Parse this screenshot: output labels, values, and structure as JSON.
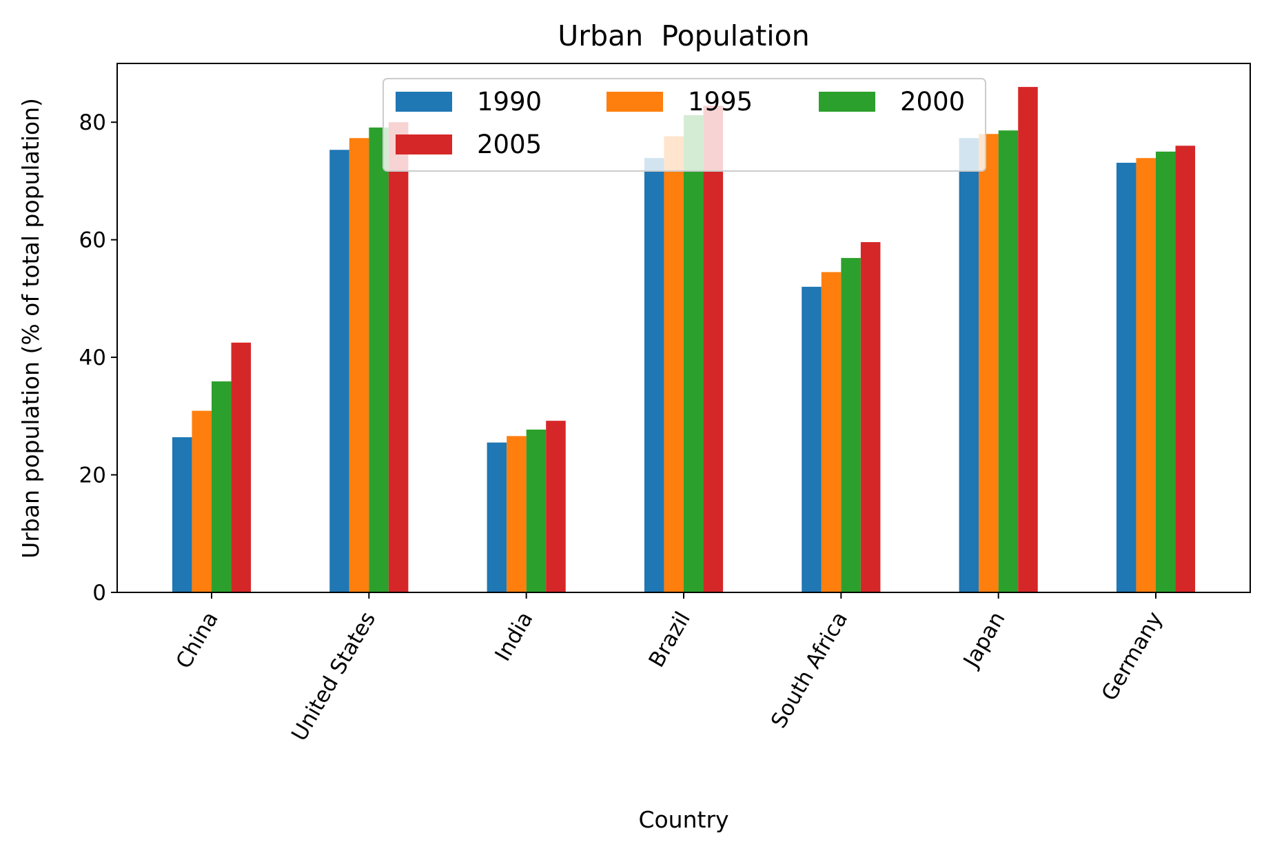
{
  "chart_data": {
    "type": "bar",
    "title": "Urban  Population",
    "xlabel": "Country",
    "ylabel": "Urban population (% of total population)",
    "categories": [
      "China",
      "United States",
      "India",
      "Brazil",
      "South Africa",
      "Japan",
      "Germany"
    ],
    "series": [
      {
        "name": "1990",
        "color": "#1f77b4",
        "values": [
          26.4,
          75.3,
          25.5,
          73.9,
          52.0,
          77.3,
          73.1
        ]
      },
      {
        "name": "1995",
        "color": "#ff7f0e",
        "values": [
          30.9,
          77.3,
          26.6,
          77.6,
          54.5,
          78.0,
          73.9
        ]
      },
      {
        "name": "2000",
        "color": "#2ca02c",
        "values": [
          35.9,
          79.1,
          27.7,
          81.2,
          56.9,
          78.6,
          75.0
        ]
      },
      {
        "name": "2005",
        "color": "#d62728",
        "values": [
          42.5,
          80.0,
          29.2,
          82.8,
          59.6,
          86.0,
          76.0
        ]
      }
    ],
    "ylim": [
      0,
      90
    ],
    "yticks": [
      0,
      20,
      40,
      60,
      80
    ],
    "grid": false,
    "legend_placement": "top-center",
    "legend_columns": 3
  }
}
